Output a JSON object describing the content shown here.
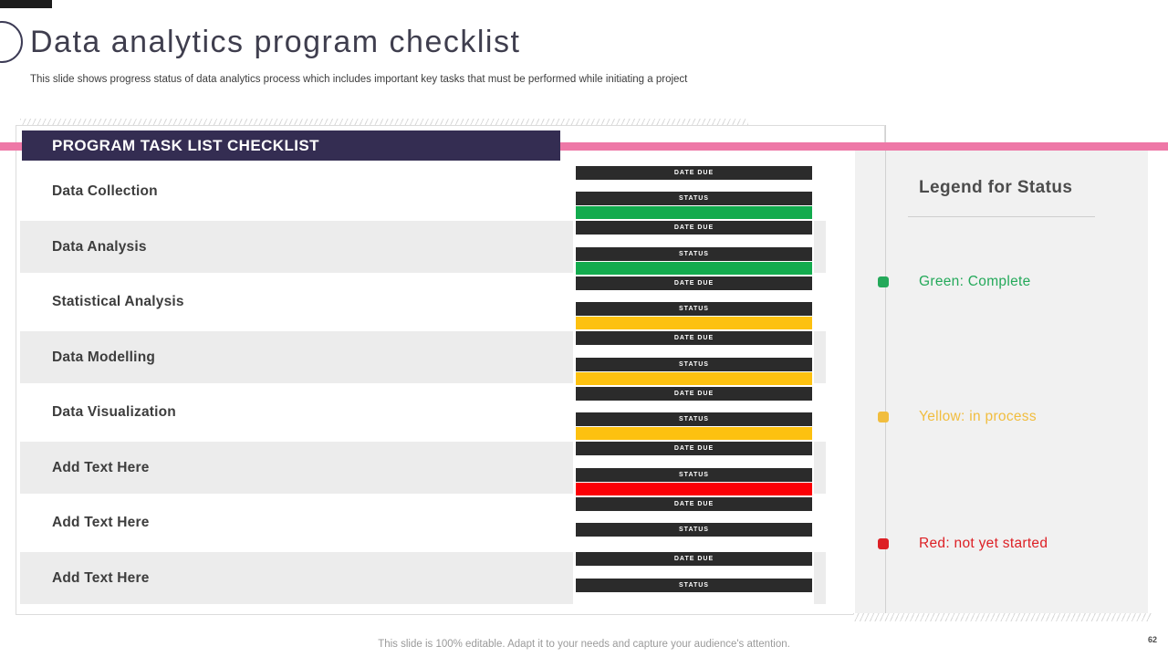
{
  "slide": {
    "title": "Data analytics program checklist",
    "subtitle": "This slide shows progress status of data analytics process which includes important key tasks that must be performed while initiating a project",
    "footer": "This slide is 100% editable. Adapt it to your needs and capture your audience's attention.",
    "page_number": "62"
  },
  "checklist": {
    "header": "PROGRAM TASK LIST CHECKLIST",
    "date_due_label": "DATE DUE",
    "status_label": "STATUS",
    "tasks": [
      {
        "label": "Data Collection",
        "status": "complete",
        "status_color": "#13ab4e"
      },
      {
        "label": "Data Analysis",
        "status": "complete",
        "status_color": "#13ab4e"
      },
      {
        "label": "Statistical Analysis",
        "status": "in process",
        "status_color": "#fdc110"
      },
      {
        "label": "Data Modelling",
        "status": "in process",
        "status_color": "#fdc110"
      },
      {
        "label": "Data Visualization",
        "status": "in process",
        "status_color": "#fdc110"
      },
      {
        "label": "Add Text Here",
        "status": "not yet started",
        "status_color": "#fb0006"
      },
      {
        "label": "Add Text Here",
        "status": "none",
        "status_color": ""
      },
      {
        "label": "Add Text Here",
        "status": "none",
        "status_color": ""
      }
    ]
  },
  "legend": {
    "title": "Legend for Status",
    "items": [
      {
        "label": "Green: Complete",
        "color": "#24a95a"
      },
      {
        "label": "Yellow: in process",
        "color": "#f1bd3e"
      },
      {
        "label": "Red: not yet started",
        "color": "#dd2025"
      }
    ]
  },
  "colors": {
    "accent_pink": "#ee78a7",
    "header_bg": "#342d52",
    "bar_dark": "#2b2b2b"
  }
}
